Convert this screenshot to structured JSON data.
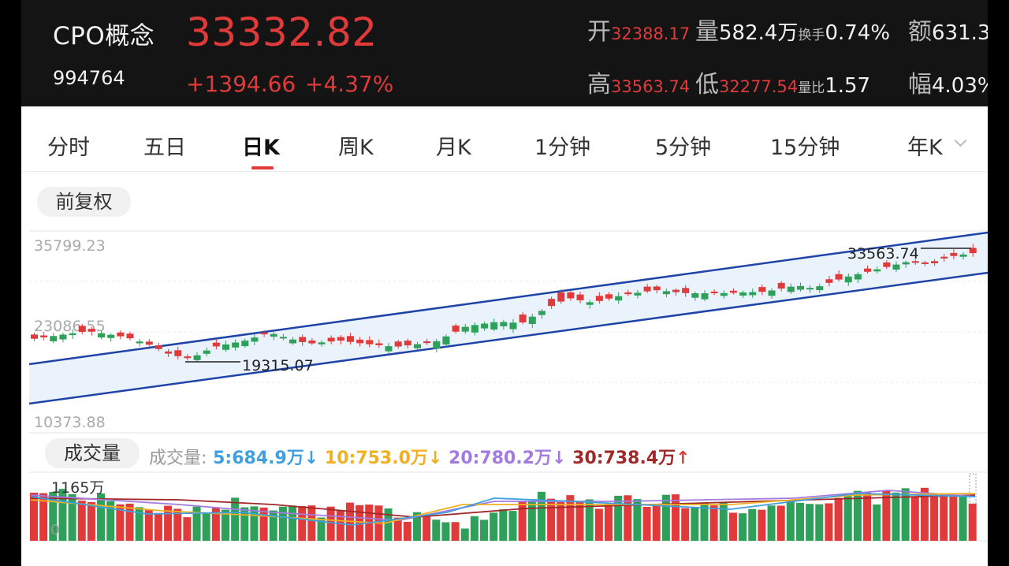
{
  "header": {
    "name": "CPO概念",
    "code": "994764",
    "price": "33332.82",
    "change": "+1394.66",
    "change_pct": "+4.37%",
    "stats": {
      "open_label": "开",
      "open": "32388.17",
      "volume_label": "量",
      "volume": "582.4万",
      "turnover_label": "换手",
      "turnover": "0.74%",
      "amount_label": "额",
      "amount": "631.3",
      "high_label": "高",
      "high": "33563.74",
      "low_label": "低",
      "low": "32277.54",
      "vol_ratio_label": "量比",
      "vol_ratio": "1.57",
      "amplitude_label": "幅",
      "amplitude": "4.03%"
    },
    "colors": {
      "up": "#e03a3a",
      "down": "#2ea05a"
    }
  },
  "tabs": [
    "分时",
    "五日",
    "日K",
    "周K",
    "月K",
    "1分钟",
    "5分钟",
    "15分钟",
    "年K"
  ],
  "active_tab": "日K",
  "adjust_label": "前复权",
  "chart_data": {
    "type": "candlestick",
    "axis_labels": [
      "35799.23",
      "23086.55",
      "10373.88"
    ],
    "ylim": [
      10373.88,
      35799.23
    ],
    "annotations": {
      "max_label": "33563.74",
      "min_label": "19315.07"
    },
    "volume": {
      "title": "成交量",
      "legend_prefix": "成交量:",
      "ma5": "5:684.9万",
      "ma10": "10:753.0万",
      "ma20": "20:780.2万",
      "ma30": "30:738.4万",
      "max_label": "1165万",
      "zero_label": "0",
      "colors": {
        "ma5": "#3f9fe0",
        "ma10": "#f0b020",
        "ma20": "#a27ae0",
        "ma30": "#a02828"
      }
    }
  }
}
